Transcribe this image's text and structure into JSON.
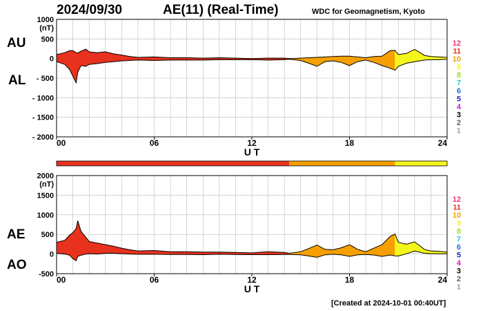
{
  "header": {
    "date": "2024/09/30",
    "title": "AE(11) (Real-Time)",
    "credit": "WDC for Geomagnetism, Kyoto"
  },
  "footer": {
    "created": "[Created at 2024-10-01 00:40UT]"
  },
  "labels": {
    "top_upper": "AU",
    "top_lower": "AL",
    "bottom_upper": "AE",
    "bottom_lower": "AO"
  },
  "colors": {
    "level_12": "#e8327a",
    "level_11": "#e8321e",
    "level_10": "#f5a000",
    "level_9": "#f5f51e",
    "level_8": "#9ee01e",
    "level_7": "#1ec8c8",
    "level_6": "#1e6ef0",
    "level_5": "#1e1ec8",
    "level_4": "#c81ec8",
    "level_3": "#000000",
    "level_2": "#606060",
    "level_1": "#a0a0a0"
  },
  "chart_data": [
    {
      "type": "area",
      "panel": "AU/AL",
      "xlabel": "U T",
      "ylabel": "(nT)",
      "xlim": [
        0,
        24
      ],
      "ylim": [
        -2000,
        1000
      ],
      "xticks": [
        "00",
        "06",
        "12",
        "18",
        "24"
      ],
      "yticks": [
        "1000",
        "500",
        "0",
        "- 500",
        "- 1000",
        "- 1500",
        "- 2000"
      ],
      "grid": true,
      "x": [
        0,
        0.5,
        0.8,
        1.0,
        1.2,
        1.3,
        1.5,
        1.8,
        2.0,
        2.5,
        3.0,
        3.5,
        4.0,
        4.5,
        5.0,
        6.0,
        7.0,
        8.0,
        9.0,
        10.0,
        11.0,
        12.0,
        13.0,
        14.0,
        14.3,
        15.0,
        15.5,
        16.0,
        16.5,
        17.0,
        17.5,
        18.0,
        18.5,
        19.0,
        19.5,
        20.0,
        20.5,
        20.8,
        21.0,
        21.5,
        22.0,
        22.3,
        22.6,
        23.0,
        23.5,
        24.0
      ],
      "series": [
        {
          "name": "AU",
          "values": [
            100,
            150,
            200,
            200,
            150,
            140,
            190,
            240,
            170,
            150,
            170,
            120,
            90,
            50,
            30,
            40,
            20,
            20,
            10,
            20,
            10,
            0,
            10,
            10,
            0,
            10,
            20,
            30,
            40,
            50,
            60,
            60,
            40,
            20,
            50,
            60,
            200,
            210,
            100,
            130,
            230,
            160,
            80,
            50,
            40,
            30
          ]
        },
        {
          "name": "AL",
          "values": [
            -80,
            -150,
            -280,
            -450,
            -620,
            -350,
            -180,
            -200,
            -150,
            -130,
            -100,
            -80,
            -60,
            -50,
            -40,
            -50,
            -40,
            -40,
            -40,
            -30,
            -30,
            -30,
            -40,
            -30,
            -20,
            -50,
            -120,
            -200,
            -80,
            -60,
            -100,
            -180,
            -80,
            -40,
            -100,
            -180,
            -250,
            -300,
            -200,
            -120,
            -80,
            -60,
            -40,
            -30,
            -30,
            -20
          ]
        }
      ],
      "color_bar": [
        {
          "from": 0,
          "to": 14.3,
          "level": "level_11"
        },
        {
          "from": 14.3,
          "to": 20.8,
          "level": "level_10"
        },
        {
          "from": 20.8,
          "to": 24,
          "level": "level_9"
        }
      ],
      "legend": [
        "12",
        "11",
        "10",
        "9",
        "8",
        "7",
        "6",
        "5",
        "4",
        "3",
        "2",
        "1"
      ]
    },
    {
      "type": "area",
      "panel": "AE/AO",
      "xlabel": "U T",
      "ylabel": "(nT)",
      "xlim": [
        0,
        24
      ],
      "ylim": [
        -500,
        2000
      ],
      "xticks": [
        "00",
        "06",
        "12",
        "18",
        "24"
      ],
      "yticks": [
        "2000",
        "1500",
        "1000",
        "500",
        "0",
        "-500"
      ],
      "grid": true,
      "x": [
        0,
        0.5,
        0.8,
        1.0,
        1.2,
        1.3,
        1.5,
        1.8,
        2.0,
        2.5,
        3.0,
        3.5,
        4.0,
        4.5,
        5.0,
        6.0,
        7.0,
        8.0,
        9.0,
        10.0,
        11.0,
        12.0,
        13.0,
        14.0,
        14.3,
        15.0,
        15.5,
        16.0,
        16.5,
        17.0,
        17.5,
        18.0,
        18.5,
        19.0,
        19.5,
        20.0,
        20.5,
        20.8,
        21.0,
        21.5,
        22.0,
        22.3,
        22.6,
        23.0,
        23.5,
        24.0
      ],
      "series": [
        {
          "name": "AE",
          "values": [
            300,
            350,
            480,
            550,
            650,
            850,
            580,
            430,
            320,
            280,
            240,
            200,
            150,
            110,
            80,
            90,
            60,
            60,
            50,
            50,
            40,
            30,
            60,
            40,
            20,
            60,
            140,
            230,
            120,
            110,
            160,
            240,
            120,
            60,
            150,
            240,
            450,
            510,
            300,
            250,
            310,
            220,
            120,
            80,
            70,
            50
          ]
        },
        {
          "name": "AO",
          "values": [
            20,
            0,
            -30,
            -120,
            -170,
            -60,
            -30,
            0,
            10,
            0,
            20,
            20,
            10,
            0,
            -5,
            -5,
            -10,
            -10,
            -15,
            -5,
            -10,
            -15,
            -15,
            -10,
            -10,
            -20,
            -50,
            -85,
            -20,
            -5,
            -20,
            -60,
            -20,
            -10,
            -25,
            -60,
            -25,
            -45,
            -50,
            5,
            75,
            50,
            20,
            10,
            5,
            5
          ]
        }
      ],
      "color_bar": [
        {
          "from": 0,
          "to": 14.3,
          "level": "level_11"
        },
        {
          "from": 14.3,
          "to": 20.8,
          "level": "level_10"
        },
        {
          "from": 20.8,
          "to": 24,
          "level": "level_9"
        }
      ],
      "legend": [
        "12",
        "11",
        "10",
        "9",
        "8",
        "7",
        "6",
        "5",
        "4",
        "3",
        "2",
        "1"
      ]
    }
  ]
}
